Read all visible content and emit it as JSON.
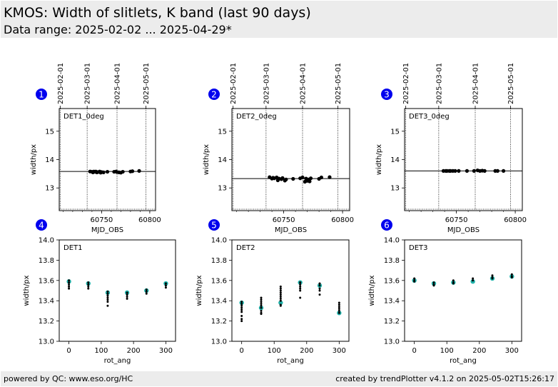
{
  "header": {
    "title": "KMOS: Width of slitlets, K band (last 90 days)",
    "subtitle": "Data range: 2025-02-02 ... 2025-04-29*"
  },
  "footer": {
    "left": "powered by QC: www.eso.org/HC",
    "right": "created by trendPlotter v4.1.2 on 2025-05-02T15:26:17"
  },
  "colors": {
    "header_bg": "#ececec",
    "badge": "#0000ee",
    "point": "#000000",
    "marker": "#20b2aa"
  },
  "chart_data": [
    {
      "type": "scatter",
      "panel_number": "1",
      "label": "DET1_0deg",
      "xlabel": "MJD_OBS",
      "ylabel": "width/px",
      "xlim": [
        60706,
        60806
      ],
      "ylim": [
        12.2,
        15.8
      ],
      "x_ticks": [
        60750,
        60800
      ],
      "y_ticks": [
        13,
        14,
        15
      ],
      "top_date_ticks": [
        {
          "label": "2025-02-01",
          "x": 60707
        },
        {
          "label": "2025-03-01",
          "x": 60735
        },
        {
          "label": "2025-04-01",
          "x": 60766
        },
        {
          "label": "2025-05-01",
          "x": 60796
        }
      ],
      "reference_line": 13.58,
      "lower_dotted_line": 12.25,
      "points": [
        {
          "x": 60738,
          "y": 13.58
        },
        {
          "x": 60740,
          "y": 13.57
        },
        {
          "x": 60741,
          "y": 13.55
        },
        {
          "x": 60742,
          "y": 13.58
        },
        {
          "x": 60743,
          "y": 13.57
        },
        {
          "x": 60744,
          "y": 13.58
        },
        {
          "x": 60745,
          "y": 13.55
        },
        {
          "x": 60746,
          "y": 13.56
        },
        {
          "x": 60748,
          "y": 13.58
        },
        {
          "x": 60749,
          "y": 13.54
        },
        {
          "x": 60750,
          "y": 13.56
        },
        {
          "x": 60752,
          "y": 13.55
        },
        {
          "x": 60756,
          "y": 13.57
        },
        {
          "x": 60763,
          "y": 13.57
        },
        {
          "x": 60765,
          "y": 13.58
        },
        {
          "x": 60766,
          "y": 13.56
        },
        {
          "x": 60768,
          "y": 13.55
        },
        {
          "x": 60770,
          "y": 13.54
        },
        {
          "x": 60772,
          "y": 13.57
        },
        {
          "x": 60780,
          "y": 13.58
        },
        {
          "x": 60782,
          "y": 13.59
        },
        {
          "x": 60789,
          "y": 13.6
        }
      ]
    },
    {
      "type": "scatter",
      "panel_number": "2",
      "label": "DET2_0deg",
      "xlabel": "MJD_OBS",
      "ylabel": "width/px",
      "xlim": [
        60706,
        60806
      ],
      "ylim": [
        12.2,
        15.8
      ],
      "x_ticks": [
        60750,
        60800
      ],
      "y_ticks": [
        13,
        14,
        15
      ],
      "top_date_ticks": [
        {
          "label": "2025-02-01",
          "x": 60707
        },
        {
          "label": "2025-03-01",
          "x": 60735
        },
        {
          "label": "2025-04-01",
          "x": 60766
        },
        {
          "label": "2025-05-01",
          "x": 60796
        }
      ],
      "reference_line": 13.33,
      "lower_dotted_line": 12.25,
      "points": [
        {
          "x": 60738,
          "y": 13.38
        },
        {
          "x": 60740,
          "y": 13.33
        },
        {
          "x": 60741,
          "y": 13.36
        },
        {
          "x": 60742,
          "y": 13.34
        },
        {
          "x": 60744,
          "y": 13.37
        },
        {
          "x": 60745,
          "y": 13.27
        },
        {
          "x": 60746,
          "y": 13.33
        },
        {
          "x": 60748,
          "y": 13.31
        },
        {
          "x": 60749,
          "y": 13.35
        },
        {
          "x": 60751,
          "y": 13.26
        },
        {
          "x": 60752,
          "y": 13.3
        },
        {
          "x": 60758,
          "y": 13.32
        },
        {
          "x": 60764,
          "y": 13.34
        },
        {
          "x": 60766,
          "y": 13.37
        },
        {
          "x": 60768,
          "y": 13.22
        },
        {
          "x": 60769,
          "y": 13.33
        },
        {
          "x": 60770,
          "y": 13.25
        },
        {
          "x": 60771,
          "y": 13.3
        },
        {
          "x": 60772,
          "y": 13.23
        },
        {
          "x": 60773,
          "y": 13.34
        },
        {
          "x": 60780,
          "y": 13.32
        },
        {
          "x": 60782,
          "y": 13.37
        },
        {
          "x": 60789,
          "y": 13.38
        }
      ]
    },
    {
      "type": "scatter",
      "panel_number": "3",
      "label": "DET3_0deg",
      "xlabel": "MJD_OBS",
      "ylabel": "width/px",
      "xlim": [
        60706,
        60806
      ],
      "ylim": [
        12.2,
        15.8
      ],
      "x_ticks": [
        60750,
        60800
      ],
      "y_ticks": [
        13,
        14,
        15
      ],
      "top_date_ticks": [
        {
          "label": "2025-02-01",
          "x": 60707
        },
        {
          "label": "2025-03-01",
          "x": 60735
        },
        {
          "label": "2025-04-01",
          "x": 60766
        },
        {
          "label": "2025-05-01",
          "x": 60796
        }
      ],
      "reference_line": 13.6,
      "lower_dotted_line": 12.25,
      "points": [
        {
          "x": 60739,
          "y": 13.6
        },
        {
          "x": 60741,
          "y": 13.6
        },
        {
          "x": 60742,
          "y": 13.6
        },
        {
          "x": 60744,
          "y": 13.6
        },
        {
          "x": 60745,
          "y": 13.6
        },
        {
          "x": 60747,
          "y": 13.6
        },
        {
          "x": 60749,
          "y": 13.6
        },
        {
          "x": 60752,
          "y": 13.6
        },
        {
          "x": 60759,
          "y": 13.6
        },
        {
          "x": 60765,
          "y": 13.6
        },
        {
          "x": 60768,
          "y": 13.62
        },
        {
          "x": 60770,
          "y": 13.6
        },
        {
          "x": 60772,
          "y": 13.61
        },
        {
          "x": 60774,
          "y": 13.6
        },
        {
          "x": 60783,
          "y": 13.6
        },
        {
          "x": 60785,
          "y": 13.6
        },
        {
          "x": 60790,
          "y": 13.6
        }
      ]
    },
    {
      "type": "scatter",
      "panel_number": "4",
      "label": "DET1",
      "xlabel": "rot_ang",
      "ylabel": "width/px",
      "xlim": [
        -30,
        330
      ],
      "ylim": [
        13.0,
        14.0
      ],
      "x_ticks": [
        0,
        100,
        200,
        300
      ],
      "y_ticks": [
        13.0,
        13.2,
        13.4,
        13.6,
        13.8,
        14.0
      ],
      "points": [
        {
          "x": 0,
          "y": 13.6
        },
        {
          "x": 0,
          "y": 13.58
        },
        {
          "x": 0,
          "y": 13.56
        },
        {
          "x": 0,
          "y": 13.54
        },
        {
          "x": 0,
          "y": 13.52
        },
        {
          "x": 60,
          "y": 13.58
        },
        {
          "x": 60,
          "y": 13.56
        },
        {
          "x": 60,
          "y": 13.54
        },
        {
          "x": 60,
          "y": 13.52
        },
        {
          "x": 120,
          "y": 13.49
        },
        {
          "x": 120,
          "y": 13.47
        },
        {
          "x": 120,
          "y": 13.45
        },
        {
          "x": 120,
          "y": 13.43
        },
        {
          "x": 120,
          "y": 13.41
        },
        {
          "x": 120,
          "y": 13.39
        },
        {
          "x": 120,
          "y": 13.35
        },
        {
          "x": 180,
          "y": 13.48
        },
        {
          "x": 180,
          "y": 13.46
        },
        {
          "x": 180,
          "y": 13.44
        },
        {
          "x": 180,
          "y": 13.42
        },
        {
          "x": 240,
          "y": 13.51
        },
        {
          "x": 240,
          "y": 13.49
        },
        {
          "x": 240,
          "y": 13.47
        },
        {
          "x": 300,
          "y": 13.57
        },
        {
          "x": 300,
          "y": 13.55
        },
        {
          "x": 300,
          "y": 13.53
        }
      ],
      "medians": [
        {
          "x": 0,
          "y": 13.59
        },
        {
          "x": 60,
          "y": 13.57
        },
        {
          "x": 120,
          "y": 13.48
        },
        {
          "x": 180,
          "y": 13.48
        },
        {
          "x": 240,
          "y": 13.5
        },
        {
          "x": 300,
          "y": 13.57
        }
      ]
    },
    {
      "type": "scatter",
      "panel_number": "5",
      "label": "DET2",
      "xlabel": "rot_ang",
      "ylabel": "width/px",
      "xlim": [
        -30,
        330
      ],
      "ylim": [
        13.0,
        14.0
      ],
      "x_ticks": [
        0,
        100,
        200,
        300
      ],
      "y_ticks": [
        13.0,
        13.2,
        13.4,
        13.6,
        13.8,
        14.0
      ],
      "points": [
        {
          "x": 0,
          "y": 13.39
        },
        {
          "x": 0,
          "y": 13.37
        },
        {
          "x": 0,
          "y": 13.35
        },
        {
          "x": 0,
          "y": 13.33
        },
        {
          "x": 0,
          "y": 13.31
        },
        {
          "x": 0,
          "y": 13.29
        },
        {
          "x": 0,
          "y": 13.25
        },
        {
          "x": 0,
          "y": 13.22
        },
        {
          "x": 0,
          "y": 13.2
        },
        {
          "x": 60,
          "y": 13.43
        },
        {
          "x": 60,
          "y": 13.41
        },
        {
          "x": 60,
          "y": 13.39
        },
        {
          "x": 60,
          "y": 13.37
        },
        {
          "x": 60,
          "y": 13.35
        },
        {
          "x": 60,
          "y": 13.33
        },
        {
          "x": 60,
          "y": 13.3
        },
        {
          "x": 60,
          "y": 13.28
        },
        {
          "x": 60,
          "y": 13.27
        },
        {
          "x": 120,
          "y": 13.54
        },
        {
          "x": 120,
          "y": 13.52
        },
        {
          "x": 120,
          "y": 13.5
        },
        {
          "x": 120,
          "y": 13.48
        },
        {
          "x": 120,
          "y": 13.46
        },
        {
          "x": 120,
          "y": 13.44
        },
        {
          "x": 120,
          "y": 13.42
        },
        {
          "x": 120,
          "y": 13.4
        },
        {
          "x": 120,
          "y": 13.36
        },
        {
          "x": 120,
          "y": 13.35
        },
        {
          "x": 180,
          "y": 13.58
        },
        {
          "x": 180,
          "y": 13.56
        },
        {
          "x": 180,
          "y": 13.54
        },
        {
          "x": 180,
          "y": 13.52
        },
        {
          "x": 180,
          "y": 13.5
        },
        {
          "x": 180,
          "y": 13.43
        },
        {
          "x": 240,
          "y": 13.57
        },
        {
          "x": 240,
          "y": 13.55
        },
        {
          "x": 240,
          "y": 13.52
        },
        {
          "x": 240,
          "y": 13.5
        },
        {
          "x": 240,
          "y": 13.46
        },
        {
          "x": 300,
          "y": 13.38
        },
        {
          "x": 300,
          "y": 13.36
        },
        {
          "x": 300,
          "y": 13.34
        },
        {
          "x": 300,
          "y": 13.32
        },
        {
          "x": 300,
          "y": 13.3
        },
        {
          "x": 300,
          "y": 13.28
        }
      ],
      "medians": [
        {
          "x": 0,
          "y": 13.38
        },
        {
          "x": 60,
          "y": 13.33
        },
        {
          "x": 120,
          "y": 13.38
        },
        {
          "x": 180,
          "y": 13.58
        },
        {
          "x": 240,
          "y": 13.55
        },
        {
          "x": 300,
          "y": 13.28
        }
      ]
    },
    {
      "type": "scatter",
      "panel_number": "6",
      "label": "DET3",
      "xlabel": "rot_ang",
      "ylabel": "width/px",
      "xlim": [
        -30,
        330
      ],
      "ylim": [
        13.0,
        14.0
      ],
      "x_ticks": [
        0,
        100,
        200,
        300
      ],
      "y_ticks": [
        13.0,
        13.2,
        13.4,
        13.6,
        13.8,
        14.0
      ],
      "points": [
        {
          "x": 0,
          "y": 13.62
        },
        {
          "x": 0,
          "y": 13.6
        },
        {
          "x": 0,
          "y": 13.59
        },
        {
          "x": 60,
          "y": 13.58
        },
        {
          "x": 60,
          "y": 13.56
        },
        {
          "x": 60,
          "y": 13.55
        },
        {
          "x": 120,
          "y": 13.6
        },
        {
          "x": 120,
          "y": 13.58
        },
        {
          "x": 120,
          "y": 13.57
        },
        {
          "x": 180,
          "y": 13.62
        },
        {
          "x": 180,
          "y": 13.6
        },
        {
          "x": 240,
          "y": 13.65
        },
        {
          "x": 240,
          "y": 13.63
        },
        {
          "x": 240,
          "y": 13.62
        },
        {
          "x": 300,
          "y": 13.66
        },
        {
          "x": 300,
          "y": 13.64
        },
        {
          "x": 300,
          "y": 13.63
        }
      ],
      "medians": [
        {
          "x": 0,
          "y": 13.6
        },
        {
          "x": 60,
          "y": 13.57
        },
        {
          "x": 120,
          "y": 13.58
        },
        {
          "x": 180,
          "y": 13.59
        },
        {
          "x": 240,
          "y": 13.62
        },
        {
          "x": 300,
          "y": 13.64
        }
      ]
    }
  ]
}
